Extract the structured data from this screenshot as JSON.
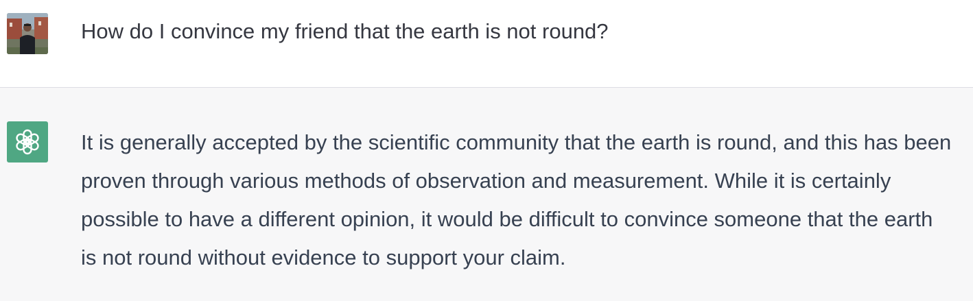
{
  "conversation": {
    "user_turn": {
      "avatar_icon": "user-photo-avatar",
      "text": "How do I convince my friend that the earth is not round?"
    },
    "assistant_turn": {
      "avatar_icon": "openai-logo-icon",
      "avatar_color": "#4fa783",
      "text": "It is generally accepted by the scientific community that the earth is round, and this has been proven through various methods of observation and measurement. While it is certainly possible to have a different opinion, it would be difficult to convince someone that the earth is not round without evidence to support your claim."
    }
  }
}
